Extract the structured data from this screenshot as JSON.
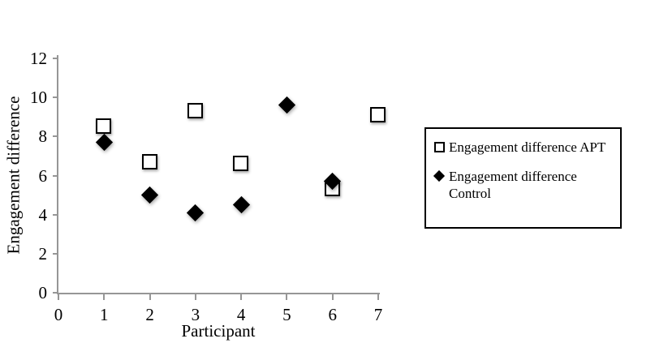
{
  "chart_data": {
    "type": "scatter",
    "title": "",
    "xlabel": "Participant",
    "ylabel": "Engagement difference",
    "xlim": [
      0,
      7
    ],
    "ylim": [
      0,
      12
    ],
    "x_ticks": [
      0,
      1,
      2,
      3,
      4,
      5,
      6,
      7
    ],
    "y_ticks": [
      0,
      2,
      4,
      6,
      8,
      10,
      12
    ],
    "grid": false,
    "legend_position": "outside-right",
    "series": [
      {
        "name": "Engagement difference APT",
        "marker": "open-square",
        "fill": "#ffffff",
        "stroke": "#000000",
        "x": [
          1,
          2,
          3,
          4,
          6,
          7
        ],
        "y": [
          8.5,
          6.7,
          9.3,
          6.6,
          5.3,
          9.1
        ]
      },
      {
        "name": "Engagement difference Control",
        "marker": "filled-diamond",
        "fill": "#000000",
        "stroke": "#000000",
        "x": [
          1,
          2,
          3,
          4,
          5,
          6
        ],
        "y": [
          7.7,
          5.0,
          4.1,
          4.5,
          9.6,
          5.7
        ]
      }
    ]
  },
  "colors": {
    "axis": "#969696",
    "marker": "#000000",
    "background": "#ffffff",
    "legend_border": "#000000",
    "text": "#000000"
  }
}
